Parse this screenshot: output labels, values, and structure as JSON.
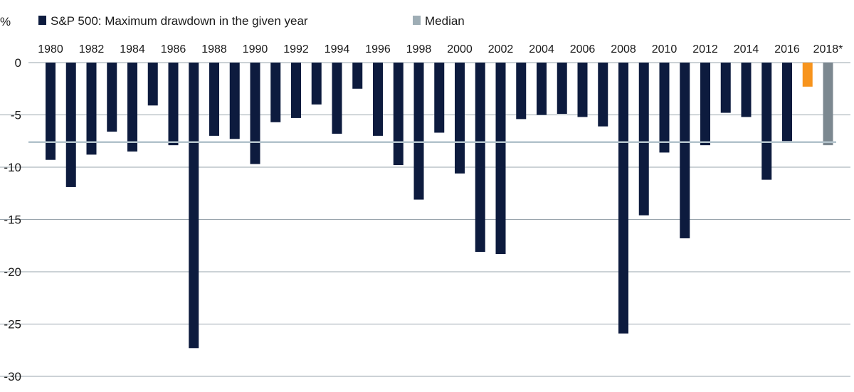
{
  "unit_label": "%",
  "legend": {
    "series_label": "S&P 500: Maximum drawdown in the given year",
    "median_label": "Median"
  },
  "colors": {
    "bar": "#0d1b3e",
    "highlight_2017": "#f7941d",
    "last_bar": "#7c8890",
    "median_line": "#b3c3cc",
    "legend_median": "#9eadb5",
    "grid": "#9aa5ad"
  },
  "chart_data": {
    "type": "bar",
    "title": "",
    "xlabel": "",
    "ylabel": "%",
    "ylim": [
      -30,
      0
    ],
    "yticks": [
      0,
      -5,
      -10,
      -15,
      -20,
      -25,
      -30
    ],
    "grid": true,
    "legend_position": "top-left",
    "median": -7.6,
    "categories": [
      "1980",
      "1981",
      "1982",
      "1983",
      "1984",
      "1985",
      "1986",
      "1987",
      "1988",
      "1989",
      "1990",
      "1991",
      "1992",
      "1993",
      "1994",
      "1995",
      "1996",
      "1997",
      "1998",
      "1999",
      "2000",
      "2001",
      "2002",
      "2003",
      "2004",
      "2005",
      "2006",
      "2007",
      "2008",
      "2009",
      "2010",
      "2011",
      "2012",
      "2013",
      "2014",
      "2015",
      "2016",
      "2017",
      "2018*"
    ],
    "category_labels_shown": [
      "1980",
      "1982",
      "1984",
      "1986",
      "1988",
      "1990",
      "1992",
      "1994",
      "1996",
      "1998",
      "2000",
      "2002",
      "2004",
      "2006",
      "2008",
      "2010",
      "2012",
      "2014",
      "2016",
      "2018*"
    ],
    "series": [
      {
        "name": "S&P 500: Maximum drawdown in the given year",
        "values": [
          -9.3,
          -11.9,
          -8.8,
          -6.6,
          -8.5,
          -4.1,
          -7.9,
          -27.3,
          -7.0,
          -7.3,
          -9.7,
          -5.7,
          -5.3,
          -4.0,
          -6.8,
          -2.5,
          -7.0,
          -9.8,
          -13.1,
          -6.7,
          -10.6,
          -18.1,
          -18.3,
          -5.4,
          -5.0,
          -4.9,
          -5.2,
          -6.1,
          -25.9,
          -14.6,
          -8.6,
          -16.8,
          -7.9,
          -4.8,
          -5.2,
          -11.2,
          -7.5,
          -2.3,
          -7.9
        ]
      }
    ]
  }
}
